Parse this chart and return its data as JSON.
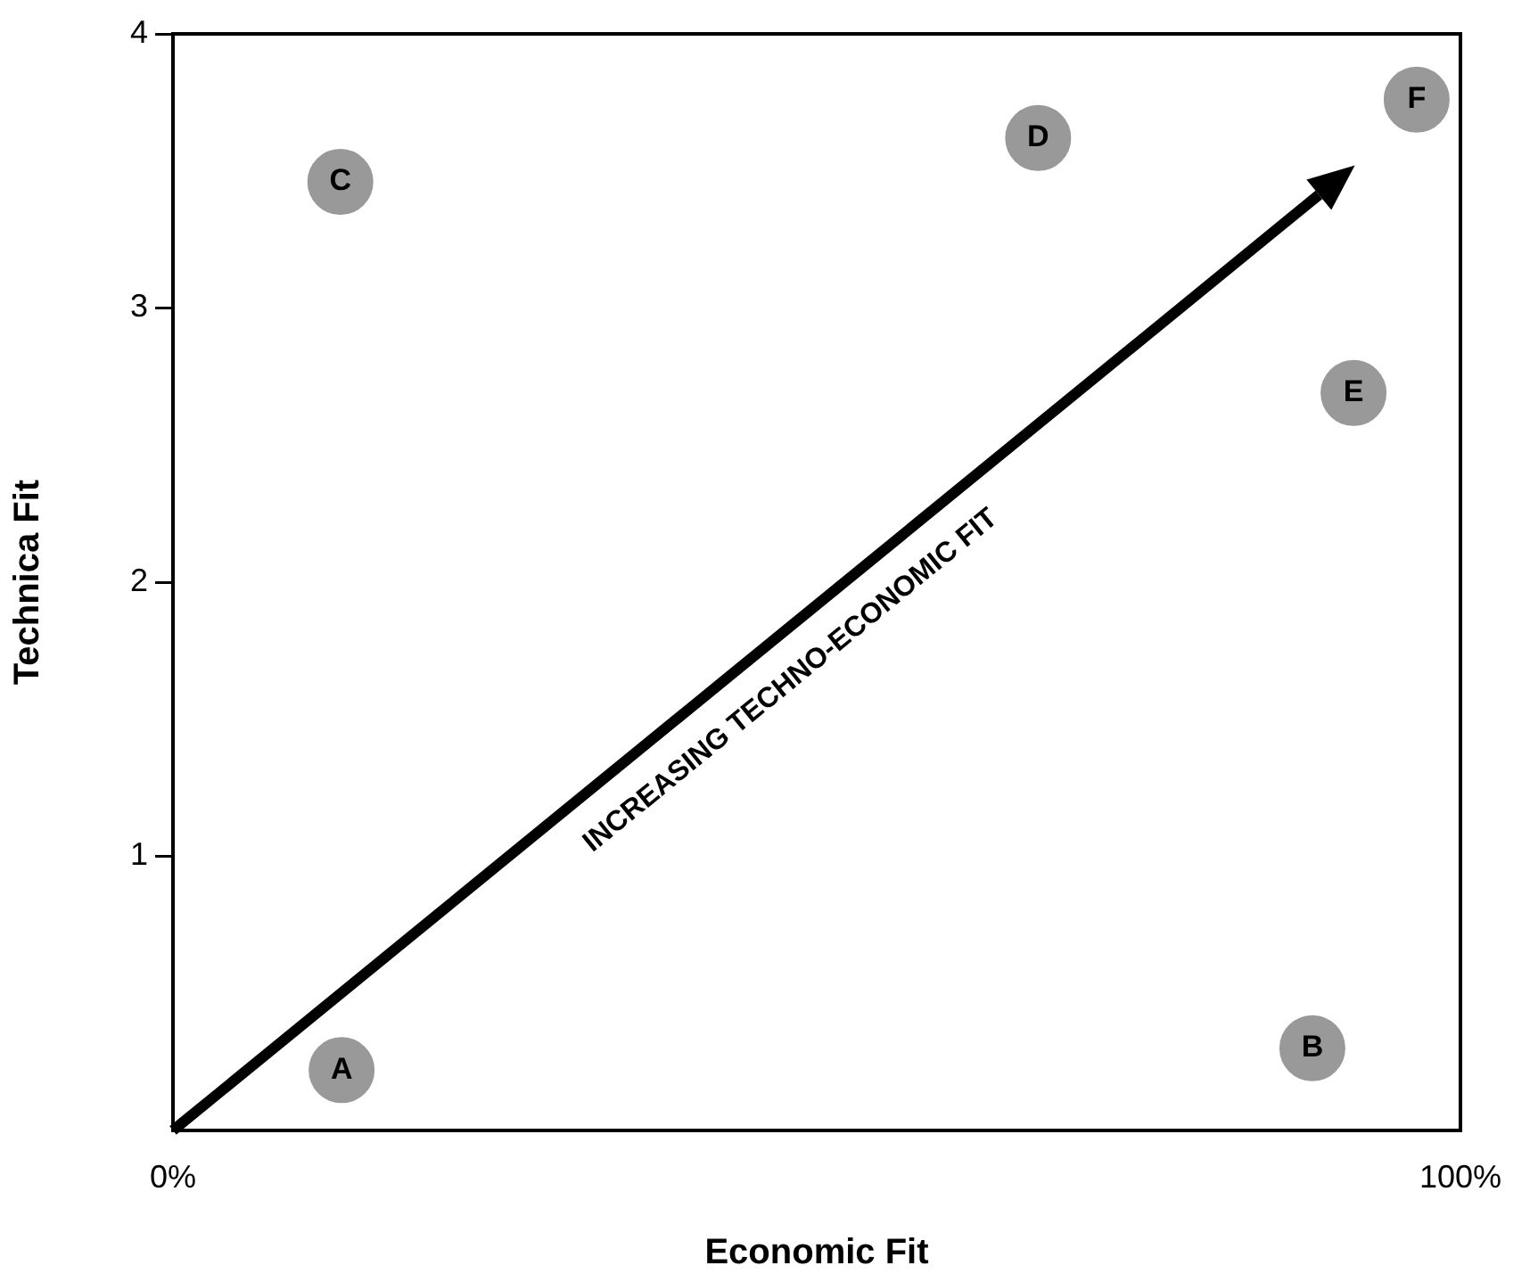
{
  "chart_data": {
    "type": "scatter",
    "xlabel": "Economic Fit",
    "ylabel": "Technica Fit",
    "xlim": [
      0,
      100
    ],
    "xticks": [
      {
        "value": 0,
        "label": "0%"
      },
      {
        "value": 100,
        "label": "100%"
      }
    ],
    "ylim": [
      0,
      4
    ],
    "yticks": [
      1,
      2,
      3,
      4
    ],
    "grid": false,
    "legend": false,
    "marker": "circle",
    "series": [
      {
        "name": "A",
        "color": "#999999",
        "x": [
          13.1
        ],
        "values": [
          0.22
        ]
      },
      {
        "name": "B",
        "color": "#999999",
        "x": [
          88.5
        ],
        "values": [
          0.3
        ]
      },
      {
        "name": "C",
        "color": "#999999",
        "x": [
          13
        ],
        "values": [
          3.46
        ]
      },
      {
        "name": "D",
        "color": "#999999",
        "x": [
          67.2
        ],
        "values": [
          3.62
        ]
      },
      {
        "name": "E",
        "color": "#999999",
        "x": [
          91.7
        ],
        "values": [
          2.69
        ]
      },
      {
        "name": "F",
        "color": "#999999",
        "x": [
          96.6
        ],
        "values": [
          3.76
        ]
      }
    ],
    "annotations": [
      "INCREASING TECHNO-ECONOMIC FIT"
    ]
  }
}
